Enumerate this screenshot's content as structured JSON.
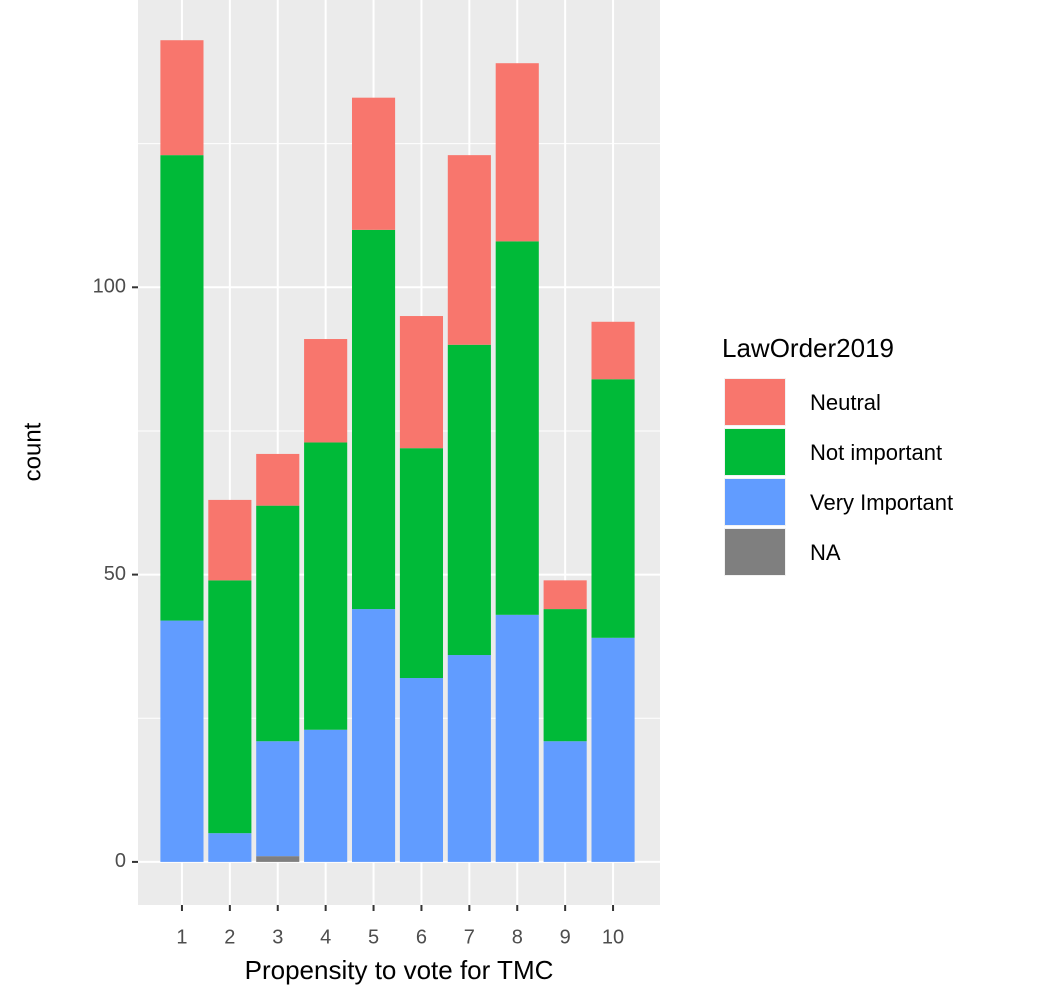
{
  "chart_data": {
    "type": "stacked_bar",
    "x_label": "Propensity to vote for TMC",
    "y_label": "count",
    "legend_title": "LawOrder2019",
    "categories": [
      "1",
      "2",
      "3",
      "4",
      "5",
      "6",
      "7",
      "8",
      "9",
      "10"
    ],
    "series": [
      {
        "name": "Neutral",
        "color": "#F8766D",
        "values": [
          20,
          14,
          9,
          18,
          23,
          23,
          33,
          31,
          5,
          10
        ]
      },
      {
        "name": "Not important",
        "color": "#00BA38",
        "values": [
          81,
          44,
          41,
          50,
          66,
          40,
          54,
          65,
          23,
          45
        ]
      },
      {
        "name": "Very Important",
        "color": "#619CFF",
        "values": [
          42,
          5,
          20,
          23,
          44,
          32,
          36,
          43,
          21,
          39
        ]
      },
      {
        "name": "NA",
        "color": "#7F7F7F",
        "values": [
          0,
          0,
          1,
          0,
          0,
          0,
          0,
          0,
          0,
          0
        ]
      }
    ],
    "ylim": [
      -7.5,
      150
    ],
    "yticks": [
      0,
      50,
      100
    ],
    "minor_yticks": [
      25,
      75,
      125
    ],
    "grid": true
  }
}
